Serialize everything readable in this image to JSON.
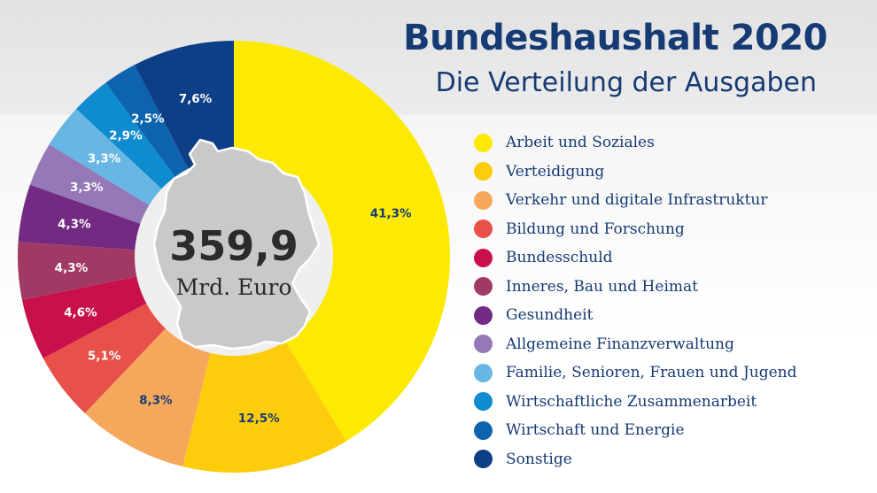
{
  "header": {
    "title": "Bundeshaushalt 2020",
    "subtitle": "Die Verteilung der Ausgaben"
  },
  "center": {
    "value": "359,9",
    "unit": "Mrd. Euro"
  },
  "chart_data": {
    "type": "pie",
    "title": "Bundeshaushalt 2020",
    "subtitle": "Die Verteilung der Ausgaben",
    "total": "359,9 Mrd. Euro",
    "donut": true,
    "legend_position": "right",
    "slices": [
      {
        "category": "Arbeit und Soziales",
        "value": 41.3,
        "label": "41,3%",
        "color": "#fcea05",
        "label_color": "#163a73"
      },
      {
        "category": "Verteidigung",
        "value": 12.5,
        "label": "12,5%",
        "color": "#fdcc0b",
        "label_color": "#163a73"
      },
      {
        "category": "Verkehr und digitale Infrastruktur",
        "value": 8.3,
        "label": "8,3%",
        "color": "#f5a85c",
        "label_color": "#163a73"
      },
      {
        "category": "Bildung und Forschung",
        "value": 5.1,
        "label": "5,1%",
        "color": "#e8504a",
        "label_color": "#ffffff"
      },
      {
        "category": "Bundesschuld",
        "value": 4.6,
        "label": "4,6%",
        "color": "#c8114a",
        "label_color": "#ffffff"
      },
      {
        "category": "Inneres, Bau und Heimat",
        "value": 4.3,
        "label": "4,3%",
        "color": "#a03a64",
        "label_color": "#ffffff"
      },
      {
        "category": "Gesundheit",
        "value": 4.3,
        "label": "4,3%",
        "color": "#722a82",
        "label_color": "#ffffff"
      },
      {
        "category": "Allgemeine Finanzverwaltung",
        "value": 3.3,
        "label": "3,3%",
        "color": "#9578b8",
        "label_color": "#ffffff"
      },
      {
        "category": "Familie, Senioren, Frauen und Jugend",
        "value": 3.3,
        "label": "3,3%",
        "color": "#68b6e4",
        "label_color": "#ffffff"
      },
      {
        "category": "Wirtschaftliche Zusammenarbeit",
        "value": 2.9,
        "label": "2,9%",
        "color": "#0f8bd0",
        "label_color": "#ffffff"
      },
      {
        "category": "Wirtschaft und Energie",
        "value": 2.5,
        "label": "2,5%",
        "color": "#0d63ad",
        "label_color": "#ffffff"
      },
      {
        "category": "Sonstige",
        "value": 7.6,
        "label": "7,6%",
        "color": "#0c3f86",
        "label_color": "#ffffff"
      }
    ]
  }
}
